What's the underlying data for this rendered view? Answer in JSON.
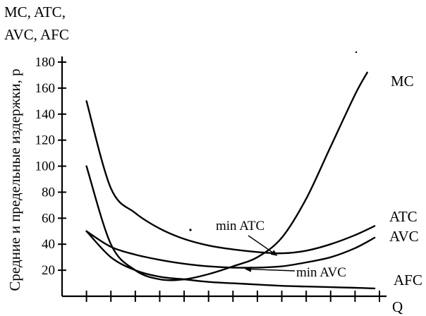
{
  "chart_data": {
    "type": "line",
    "title_lines": [
      "MC, ATC,",
      "AVC, AFC"
    ],
    "ylabel": "Средние и предельные издержки, р",
    "xlabel": "Q",
    "ylim": [
      0,
      180
    ],
    "yticks": [
      20,
      40,
      60,
      80,
      100,
      120,
      140,
      160,
      180
    ],
    "xlim": [
      0,
      13
    ],
    "x_tick_count": 13,
    "grid": false,
    "series": [
      {
        "name": "MC",
        "x": [
          1,
          2,
          3,
          4,
          5,
          6,
          7,
          8,
          9,
          10,
          11,
          12,
          12.5
        ],
        "values": [
          100,
          40,
          20,
          13,
          13,
          17,
          23,
          30,
          45,
          75,
          115,
          155,
          172
        ]
      },
      {
        "name": "ATC",
        "x": [
          1,
          2,
          3,
          4,
          5,
          6,
          7,
          8,
          9,
          10,
          11,
          12,
          12.8
        ],
        "values": [
          150,
          83,
          64,
          52,
          44,
          39,
          36,
          34,
          33,
          35,
          40,
          47,
          54
        ]
      },
      {
        "name": "AVC",
        "x": [
          1,
          2,
          3,
          4,
          5,
          6,
          7,
          8,
          9,
          10,
          11,
          12,
          12.8
        ],
        "values": [
          50,
          38,
          32,
          28,
          25,
          23,
          22,
          22,
          23,
          26,
          30,
          37,
          45
        ]
      },
      {
        "name": "AFC",
        "x": [
          1,
          2,
          3,
          4,
          5,
          6,
          7,
          8,
          9,
          10,
          11,
          12,
          12.8
        ],
        "values": [
          50,
          30,
          20,
          15,
          13,
          11,
          10,
          9,
          8,
          7.5,
          7,
          6.5,
          6
        ]
      }
    ],
    "annotations": [
      {
        "text": "min ATC",
        "target_x": 8.8,
        "target_y": 33
      },
      {
        "text": "min AVC",
        "target_x": 7.4,
        "target_y": 22
      }
    ]
  }
}
